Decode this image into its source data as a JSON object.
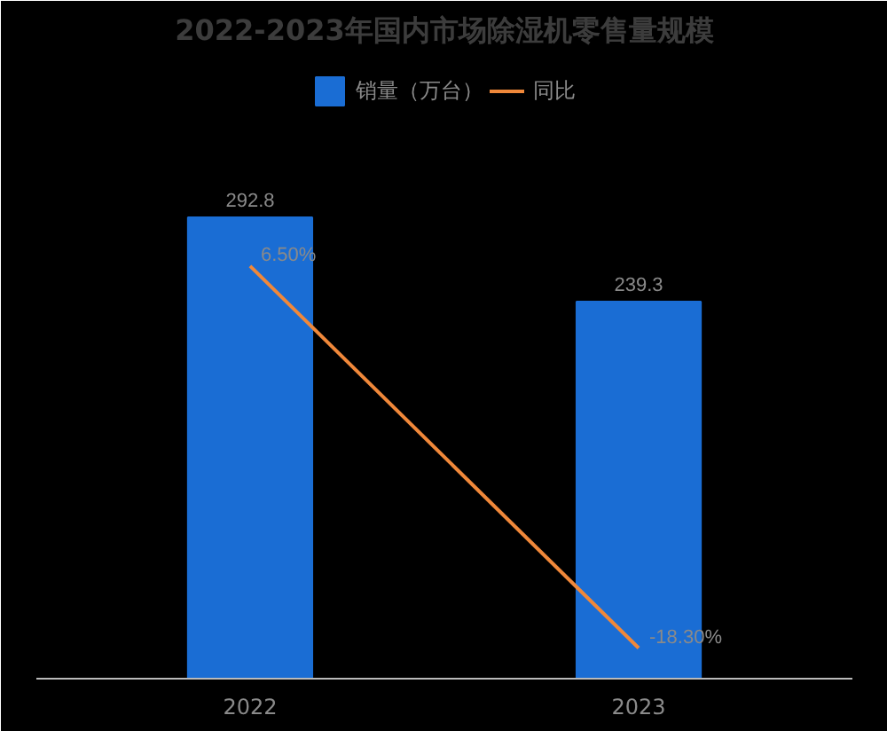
{
  "chart_data": {
    "type": "bar",
    "title": "2022-2023年国内市场除湿机零售量规模",
    "categories": [
      "2022",
      "2023"
    ],
    "series": [
      {
        "name": "销量（万台）",
        "color": "#1a6dd4",
        "values": [
          292.8,
          239.3
        ],
        "value_labels": [
          "292.8",
          "239.3"
        ]
      },
      {
        "name": "同比",
        "type": "line",
        "axis": "y2",
        "color": "#f0883a",
        "values": [
          6.5,
          -18.3
        ],
        "value_labels": [
          "6.50%",
          "-18.30%"
        ],
        "marker": "none"
      }
    ],
    "legend": "top",
    "grid": false,
    "tick_labels": "x"
  }
}
